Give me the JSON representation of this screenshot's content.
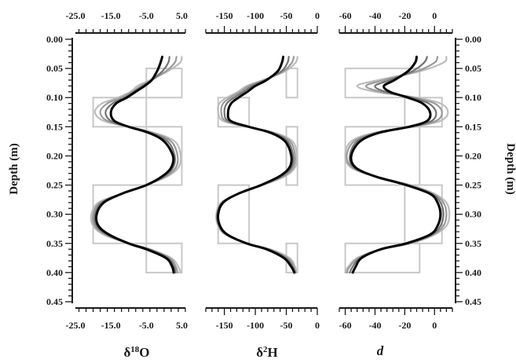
{
  "chart_data": [
    {
      "type": "line",
      "xlabel_parts": [
        "δ",
        "18",
        "O"
      ],
      "ylabel": "Depth (m)",
      "x_ticks": [
        "-25.0",
        "-15.0",
        "-5.0",
        "5.0"
      ],
      "xlim": [
        -25,
        6
      ],
      "y_ticks": [
        "0.00",
        "0.05",
        "0.10",
        "0.15",
        "0.20",
        "0.25",
        "0.30",
        "0.35",
        "0.40",
        "0.45"
      ],
      "ylim": [
        0,
        0.45
      ],
      "initial_boxes": [
        {
          "depth": [
            0.05,
            0.1
          ],
          "x": [
            -5,
            5
          ]
        },
        {
          "depth": [
            0.1,
            0.15
          ],
          "x": [
            -20,
            -5
          ]
        },
        {
          "depth": [
            0.15,
            0.25
          ],
          "x": [
            -5,
            5
          ]
        },
        {
          "depth": [
            0.25,
            0.35
          ],
          "x": [
            -20,
            -5
          ]
        },
        {
          "depth": [
            0.35,
            0.4
          ],
          "x": [
            -5,
            5
          ]
        }
      ],
      "series": [
        {
          "color": "#bdbdbd",
          "x": [
            5.0,
            4.5,
            1.0,
            -4.0,
            -7.5,
            -9.5,
            -13,
            -17.5,
            -19.5,
            -17,
            -10,
            -3,
            3,
            4.7,
            4,
            1,
            -5,
            -12,
            -18.5,
            -20.5,
            -20,
            -17,
            -10,
            -4,
            2,
            4,
            4.7
          ],
          "depth": [
            0.03,
            0.04,
            0.055,
            0.07,
            0.08,
            0.09,
            0.1,
            0.11,
            0.125,
            0.14,
            0.15,
            0.16,
            0.175,
            0.2,
            0.22,
            0.235,
            0.25,
            0.265,
            0.28,
            0.3,
            0.32,
            0.335,
            0.35,
            0.36,
            0.375,
            0.39,
            0.4
          ]
        },
        {
          "color": "#9a9a9a",
          "x": [
            3.5,
            3.0,
            0.5,
            -3.5,
            -6.5,
            -9,
            -12,
            -16,
            -18,
            -16,
            -10,
            -3.5,
            2,
            3.8,
            3.3,
            0.5,
            -5,
            -12,
            -18,
            -20,
            -19.5,
            -16.5,
            -10,
            -4,
            1.5,
            3.3,
            3.8
          ],
          "depth": [
            0.03,
            0.04,
            0.055,
            0.07,
            0.08,
            0.09,
            0.1,
            0.11,
            0.125,
            0.14,
            0.15,
            0.16,
            0.175,
            0.2,
            0.22,
            0.235,
            0.25,
            0.265,
            0.28,
            0.3,
            0.32,
            0.335,
            0.35,
            0.36,
            0.375,
            0.39,
            0.4
          ]
        },
        {
          "color": "#737373",
          "x": [
            1.5,
            1.2,
            -0.5,
            -3.5,
            -6,
            -8.5,
            -11,
            -14.5,
            -16.5,
            -15,
            -10,
            -4,
            1,
            3,
            2.5,
            0,
            -5,
            -12,
            -17.5,
            -19.5,
            -19,
            -16,
            -10,
            -4.5,
            1,
            2.8,
            3.2
          ],
          "depth": [
            0.03,
            0.04,
            0.055,
            0.07,
            0.08,
            0.09,
            0.1,
            0.11,
            0.125,
            0.14,
            0.15,
            0.16,
            0.175,
            0.2,
            0.22,
            0.235,
            0.25,
            0.265,
            0.28,
            0.3,
            0.32,
            0.335,
            0.35,
            0.36,
            0.375,
            0.39,
            0.4
          ]
        },
        {
          "color": "#000000",
          "x": [
            -0.5,
            -1.0,
            -2.0,
            -3.5,
            -5.5,
            -8,
            -10.5,
            -13.5,
            -15,
            -14,
            -10,
            -4.5,
            0,
            2.5,
            2.0,
            -0.5,
            -5,
            -12,
            -17,
            -19,
            -18.5,
            -15.5,
            -10,
            -5,
            0.5,
            2.3,
            2.7
          ],
          "depth": [
            0.03,
            0.04,
            0.055,
            0.07,
            0.08,
            0.09,
            0.1,
            0.11,
            0.125,
            0.14,
            0.15,
            0.16,
            0.175,
            0.2,
            0.22,
            0.235,
            0.25,
            0.265,
            0.28,
            0.3,
            0.32,
            0.335,
            0.35,
            0.36,
            0.375,
            0.39,
            0.4
          ]
        }
      ]
    },
    {
      "type": "line",
      "xlabel_parts": [
        "δ",
        "2",
        "H"
      ],
      "ylabel": "",
      "x_ticks": [
        "-150",
        "-100",
        "-50",
        "0"
      ],
      "xlim": [
        -180,
        0
      ],
      "initial_boxes": [
        {
          "depth": [
            0.05,
            0.1
          ],
          "x": [
            -50,
            -32
          ]
        },
        {
          "depth": [
            0.1,
            0.15
          ],
          "x": [
            -160,
            -110
          ]
        },
        {
          "depth": [
            0.15,
            0.25
          ],
          "x": [
            -50,
            -32
          ]
        },
        {
          "depth": [
            0.25,
            0.35
          ],
          "x": [
            -160,
            -110
          ]
        },
        {
          "depth": [
            0.35,
            0.4
          ],
          "x": [
            -50,
            -32
          ]
        }
      ],
      "series": [
        {
          "color": "#bdbdbd",
          "x": [
            -32,
            -35,
            -52,
            -88,
            -114,
            -128,
            -146,
            -158,
            -160,
            -152,
            -114,
            -70,
            -40,
            -33,
            -36,
            -52,
            -88,
            -128,
            -155,
            -163,
            -160,
            -148,
            -114,
            -76,
            -45,
            -36,
            -34
          ],
          "depth": [
            0.03,
            0.04,
            0.055,
            0.07,
            0.08,
            0.09,
            0.1,
            0.11,
            0.125,
            0.14,
            0.15,
            0.16,
            0.175,
            0.2,
            0.22,
            0.235,
            0.25,
            0.265,
            0.28,
            0.3,
            0.32,
            0.335,
            0.35,
            0.36,
            0.375,
            0.39,
            0.4
          ]
        },
        {
          "color": "#9a9a9a",
          "x": [
            -38,
            -41,
            -55,
            -86,
            -110,
            -124,
            -140,
            -152,
            -155,
            -148,
            -113,
            -72,
            -44,
            -36,
            -39,
            -55,
            -89,
            -128,
            -154,
            -162,
            -159,
            -147,
            -114,
            -78,
            -48,
            -38,
            -35
          ],
          "depth": [
            0.03,
            0.04,
            0.055,
            0.07,
            0.08,
            0.09,
            0.1,
            0.11,
            0.125,
            0.14,
            0.15,
            0.16,
            0.175,
            0.2,
            0.22,
            0.235,
            0.25,
            0.265,
            0.28,
            0.3,
            0.32,
            0.335,
            0.35,
            0.36,
            0.375,
            0.39,
            0.4
          ]
        },
        {
          "color": "#737373",
          "x": [
            -46,
            -48,
            -58,
            -84,
            -105,
            -119,
            -134,
            -146,
            -150,
            -144,
            -112,
            -74,
            -48,
            -39,
            -42,
            -58,
            -90,
            -128,
            -153,
            -161,
            -158,
            -146,
            -114,
            -80,
            -51,
            -40,
            -36
          ],
          "depth": [
            0.03,
            0.04,
            0.055,
            0.07,
            0.08,
            0.09,
            0.1,
            0.11,
            0.125,
            0.14,
            0.15,
            0.16,
            0.175,
            0.2,
            0.22,
            0.235,
            0.25,
            0.265,
            0.28,
            0.3,
            0.32,
            0.335,
            0.35,
            0.36,
            0.375,
            0.39,
            0.4
          ]
        },
        {
          "color": "#000000",
          "x": [
            -55,
            -57,
            -64,
            -82,
            -100,
            -113,
            -127,
            -139,
            -144,
            -140,
            -111,
            -76,
            -52,
            -42,
            -45,
            -61,
            -91,
            -128,
            -152,
            -160,
            -157,
            -145,
            -114,
            -82,
            -54,
            -42,
            -37
          ],
          "depth": [
            0.03,
            0.04,
            0.055,
            0.07,
            0.08,
            0.09,
            0.1,
            0.11,
            0.125,
            0.14,
            0.15,
            0.16,
            0.175,
            0.2,
            0.22,
            0.235,
            0.25,
            0.265,
            0.28,
            0.3,
            0.32,
            0.335,
            0.35,
            0.36,
            0.375,
            0.39,
            0.4
          ]
        }
      ]
    },
    {
      "type": "line",
      "xlabel": "d",
      "ylabel": "Depth (m)",
      "x_ticks": [
        "-60",
        "-40",
        "-20",
        "0"
      ],
      "xlim": [
        -64,
        12
      ],
      "y_ticks": [
        "0.00",
        "0.05",
        "0.10",
        "0.15",
        "0.20",
        "0.25",
        "0.30",
        "0.35",
        "0.40",
        "0.45"
      ],
      "ylim": [
        0,
        0.45
      ],
      "initial_boxes": [
        {
          "depth": [
            0.05,
            0.1
          ],
          "x": [
            -60,
            -10
          ]
        },
        {
          "depth": [
            0.1,
            0.15
          ],
          "x": [
            -20,
            5
          ]
        },
        {
          "depth": [
            0.15,
            0.25
          ],
          "x": [
            -60,
            -10
          ]
        },
        {
          "depth": [
            0.25,
            0.35
          ],
          "x": [
            -20,
            5
          ]
        },
        {
          "depth": [
            0.35,
            0.4
          ],
          "x": [
            -60,
            -10
          ]
        }
      ],
      "series": [
        {
          "color": "#bdbdbd",
          "x": [
            8,
            6,
            -10,
            -38,
            -52,
            -40,
            -12,
            4,
            9,
            4,
            -14,
            -40,
            -56,
            -60,
            -56,
            -40,
            -16,
            0,
            8,
            10,
            8,
            0,
            -16,
            -36,
            -52,
            -58,
            -60
          ],
          "depth": [
            0.03,
            0.04,
            0.055,
            0.07,
            0.08,
            0.09,
            0.1,
            0.11,
            0.125,
            0.14,
            0.15,
            0.16,
            0.175,
            0.2,
            0.22,
            0.235,
            0.25,
            0.265,
            0.28,
            0.3,
            0.32,
            0.335,
            0.35,
            0.36,
            0.375,
            0.39,
            0.4
          ]
        },
        {
          "color": "#9a9a9a",
          "x": [
            2,
            0,
            -12,
            -34,
            -46,
            -36,
            -14,
            0,
            5,
            1,
            -15,
            -39,
            -54,
            -59,
            -55,
            -40,
            -17,
            -1,
            6,
            8,
            6,
            -1,
            -17,
            -36,
            -51,
            -57,
            -59
          ],
          "depth": [
            0.03,
            0.04,
            0.055,
            0.07,
            0.08,
            0.09,
            0.1,
            0.11,
            0.125,
            0.14,
            0.15,
            0.16,
            0.175,
            0.2,
            0.22,
            0.235,
            0.25,
            0.265,
            0.28,
            0.3,
            0.32,
            0.335,
            0.35,
            0.36,
            0.375,
            0.39,
            0.4
          ]
        },
        {
          "color": "#737373",
          "x": [
            -5,
            -7,
            -15,
            -30,
            -40,
            -33,
            -16,
            -4,
            1,
            -2,
            -16,
            -38,
            -52,
            -57,
            -54,
            -40,
            -18,
            -2,
            4,
            6,
            4,
            -2,
            -18,
            -36,
            -50,
            -55,
            -57
          ],
          "depth": [
            0.03,
            0.04,
            0.055,
            0.07,
            0.08,
            0.09,
            0.1,
            0.11,
            0.125,
            0.14,
            0.15,
            0.16,
            0.175,
            0.2,
            0.22,
            0.235,
            0.25,
            0.265,
            0.28,
            0.3,
            0.32,
            0.335,
            0.35,
            0.36,
            0.375,
            0.39,
            0.4
          ]
        },
        {
          "color": "#000000",
          "x": [
            -12,
            -13,
            -18,
            -27,
            -34,
            -30,
            -18,
            -8,
            -3,
            -5,
            -17,
            -37,
            -50,
            -56,
            -53,
            -40,
            -19,
            -3,
            2,
            4,
            2,
            -3,
            -19,
            -36,
            -49,
            -53,
            -55
          ],
          "depth": [
            0.03,
            0.04,
            0.055,
            0.07,
            0.08,
            0.09,
            0.1,
            0.11,
            0.125,
            0.14,
            0.15,
            0.16,
            0.175,
            0.2,
            0.22,
            0.235,
            0.25,
            0.265,
            0.28,
            0.3,
            0.32,
            0.335,
            0.35,
            0.36,
            0.375,
            0.39,
            0.4
          ]
        }
      ]
    }
  ]
}
